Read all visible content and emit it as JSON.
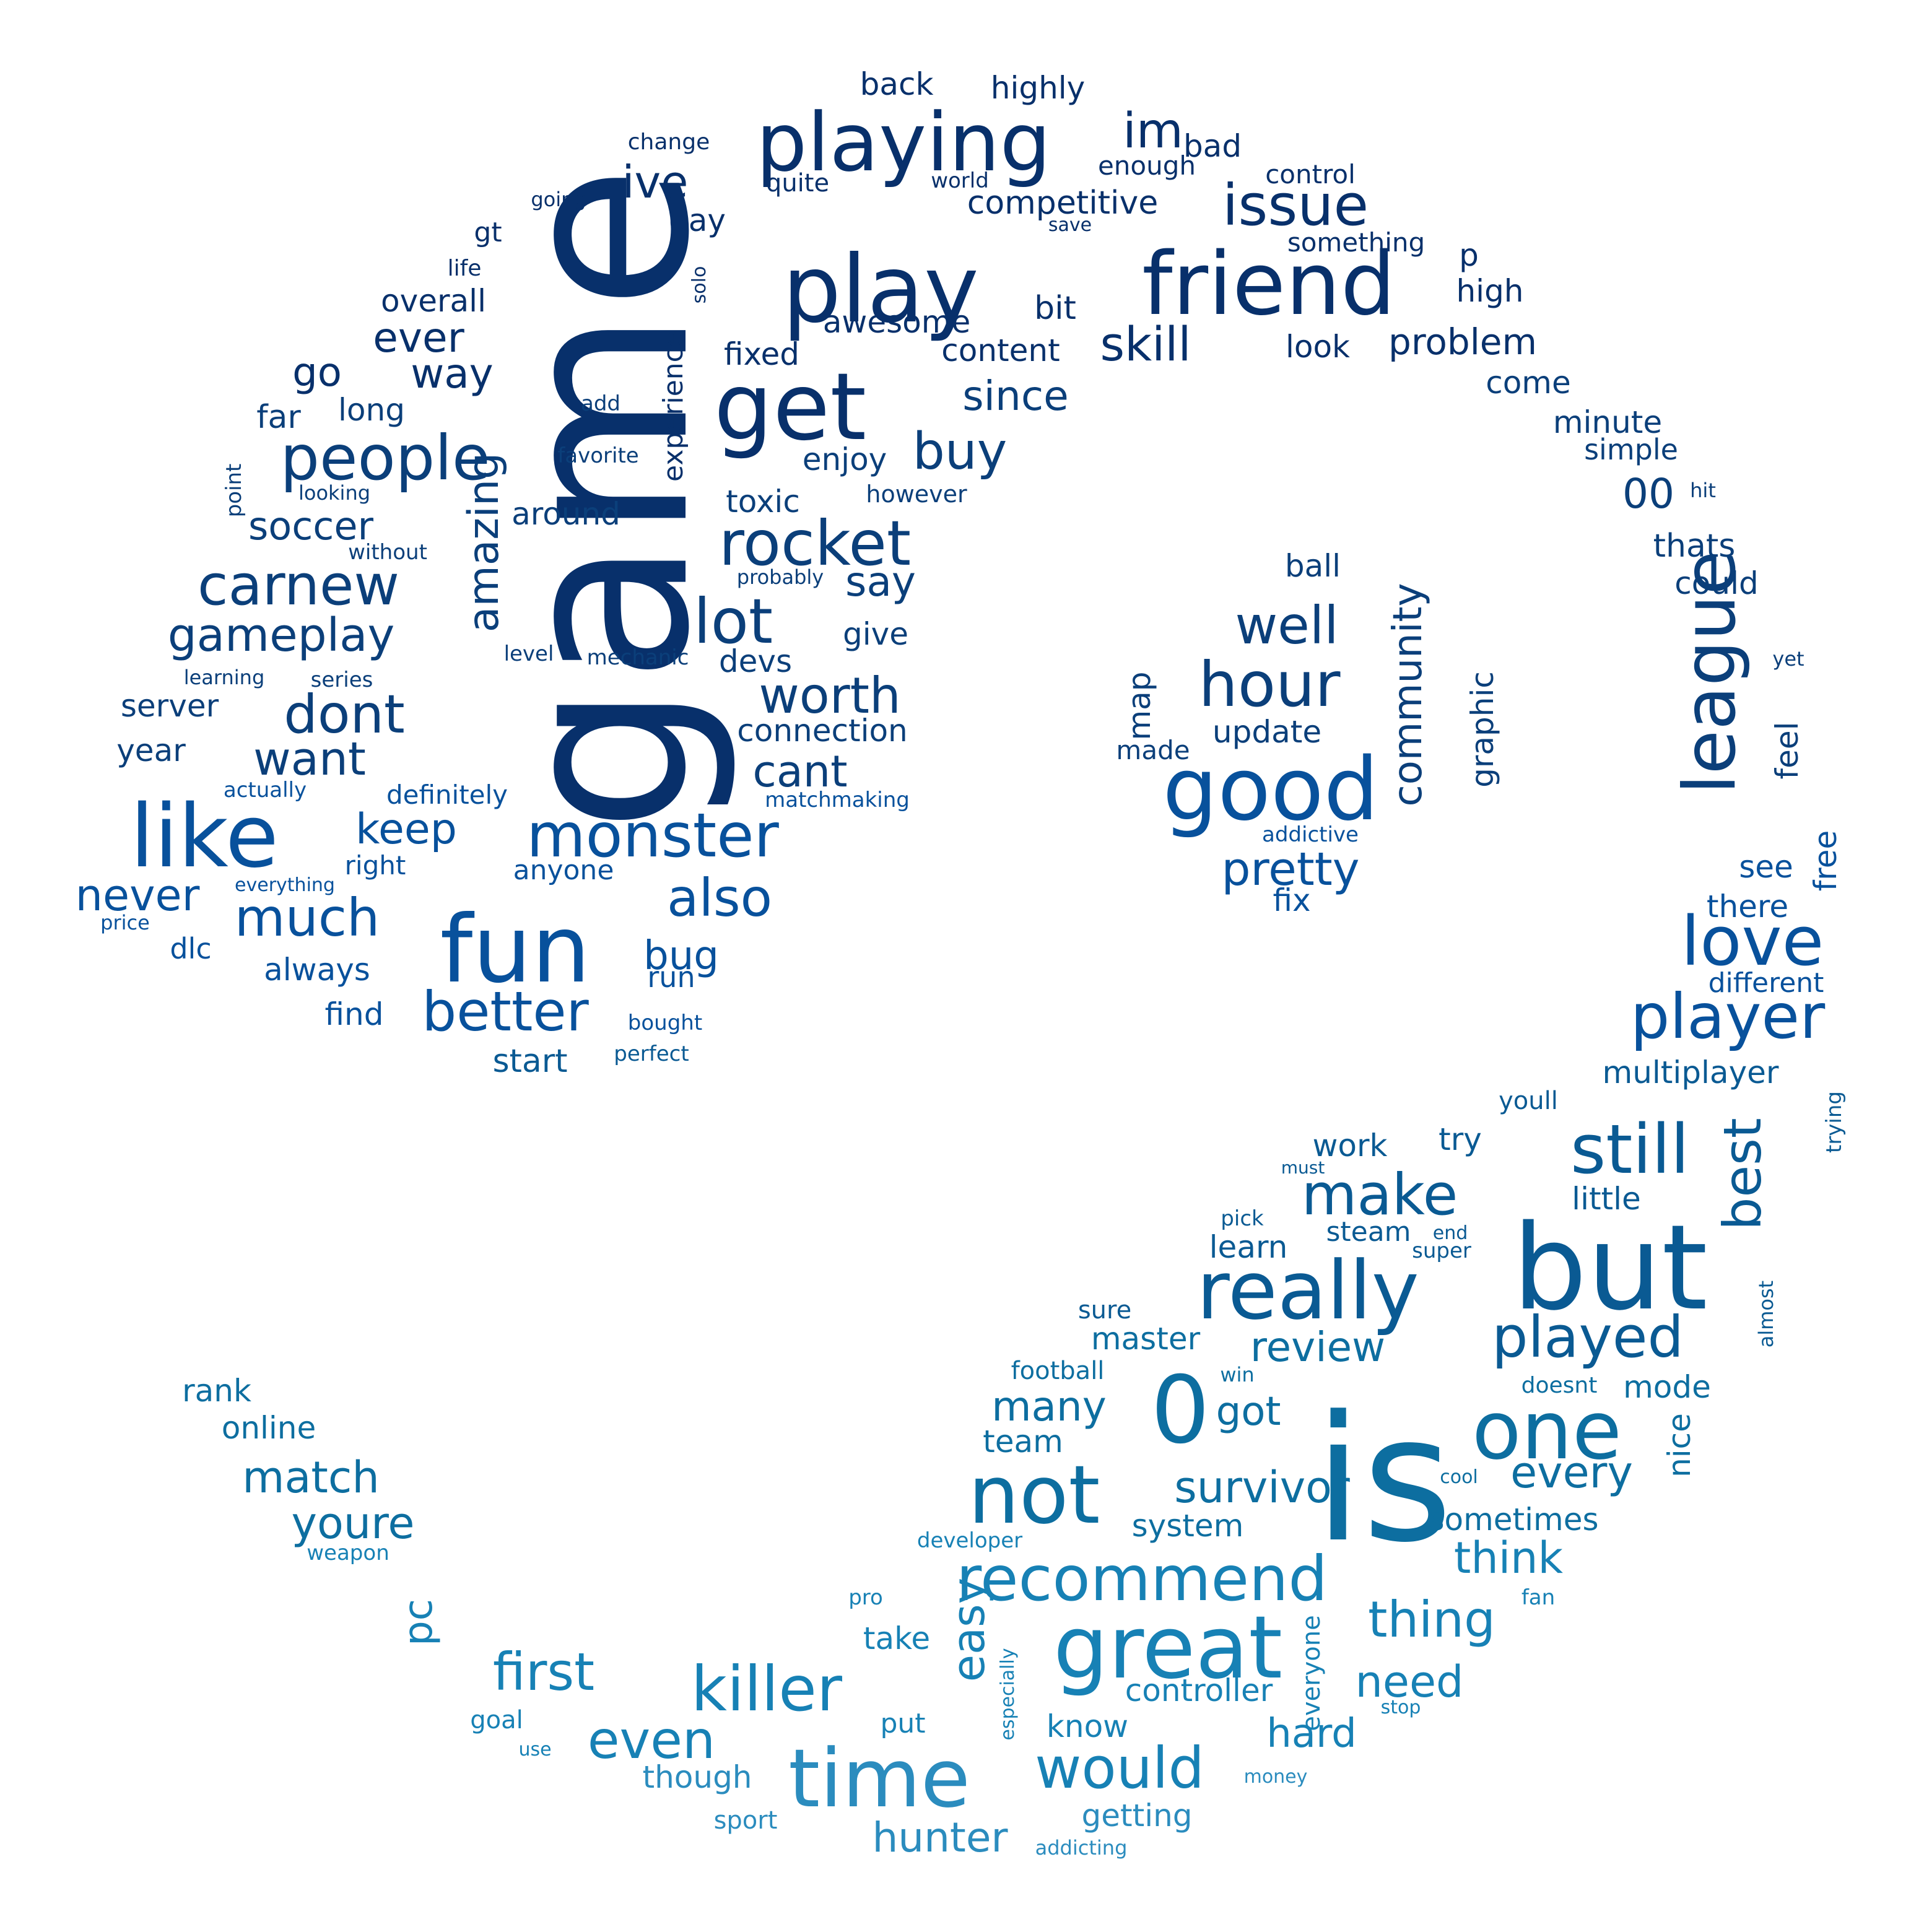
{
  "palette": [
    "#08306b",
    "#0b3f7a",
    "#08519c",
    "#0a5a93",
    "#0d6ea0",
    "#1781b5",
    "#2b8cbe"
  ],
  "words": [
    {
      "text": "game",
      "c": 0
    },
    {
      "text": "play",
      "c": 0
    },
    {
      "text": "playing",
      "c": 0
    },
    {
      "text": "friend",
      "c": 0
    },
    {
      "text": "get",
      "c": 0
    },
    {
      "text": "im",
      "c": 0
    },
    {
      "text": "ive",
      "c": 0
    },
    {
      "text": "issue",
      "c": 0
    },
    {
      "text": "back",
      "c": 0
    },
    {
      "text": "highly",
      "c": 0
    },
    {
      "text": "bad",
      "c": 0
    },
    {
      "text": "change",
      "c": 0
    },
    {
      "text": "enough",
      "c": 0
    },
    {
      "text": "control",
      "c": 0
    },
    {
      "text": "quite",
      "c": 0
    },
    {
      "text": "world",
      "c": 0
    },
    {
      "text": "going",
      "c": 0
    },
    {
      "text": "competitive",
      "c": 0
    },
    {
      "text": "day",
      "c": 0
    },
    {
      "text": "save",
      "c": 0
    },
    {
      "text": "something",
      "c": 0
    },
    {
      "text": "gt",
      "c": 0
    },
    {
      "text": "life",
      "c": 0
    },
    {
      "text": "solo",
      "c": 0
    },
    {
      "text": "p",
      "c": 0
    },
    {
      "text": "high",
      "c": 0
    },
    {
      "text": "overall",
      "c": 0
    },
    {
      "text": "bit",
      "c": 0
    },
    {
      "text": "ever",
      "c": 0
    },
    {
      "text": "awesome",
      "c": 0
    },
    {
      "text": "skill",
      "c": 0
    },
    {
      "text": "look",
      "c": 0
    },
    {
      "text": "problem",
      "c": 0
    },
    {
      "text": "way",
      "c": 0
    },
    {
      "text": "go",
      "c": 0
    },
    {
      "text": "fixed",
      "c": 0
    },
    {
      "text": "content",
      "c": 0
    },
    {
      "text": "experience",
      "c": 0
    },
    {
      "text": "come",
      "c": 1
    },
    {
      "text": "since",
      "c": 1
    },
    {
      "text": "far",
      "c": 1
    },
    {
      "text": "long",
      "c": 1
    },
    {
      "text": "add",
      "c": 1
    },
    {
      "text": "minute",
      "c": 1
    },
    {
      "text": "people",
      "c": 1
    },
    {
      "text": "simple",
      "c": 1
    },
    {
      "text": "favorite",
      "c": 1
    },
    {
      "text": "buy",
      "c": 1
    },
    {
      "text": "enjoy",
      "c": 1
    },
    {
      "text": "point",
      "c": 1
    },
    {
      "text": "looking",
      "c": 1
    },
    {
      "text": "around",
      "c": 1
    },
    {
      "text": "however",
      "c": 1
    },
    {
      "text": "00",
      "c": 1
    },
    {
      "text": "hit",
      "c": 1
    },
    {
      "text": "toxic",
      "c": 1
    },
    {
      "text": "soccer",
      "c": 1
    },
    {
      "text": "rocket",
      "c": 1
    },
    {
      "text": "thats",
      "c": 1
    },
    {
      "text": "without",
      "c": 1
    },
    {
      "text": "amazing",
      "c": 1
    },
    {
      "text": "ball",
      "c": 1
    },
    {
      "text": "carnew",
      "c": 1
    },
    {
      "text": "probably",
      "c": 1
    },
    {
      "text": "say",
      "c": 1
    },
    {
      "text": "could",
      "c": 1
    },
    {
      "text": "lot",
      "c": 1
    },
    {
      "text": "gameplay",
      "c": 1
    },
    {
      "text": "give",
      "c": 1
    },
    {
      "text": "well",
      "c": 1
    },
    {
      "text": "league",
      "c": 1
    },
    {
      "text": "level",
      "c": 1
    },
    {
      "text": "mechanic",
      "c": 1
    },
    {
      "text": "devs",
      "c": 1
    },
    {
      "text": "community",
      "c": 1
    },
    {
      "text": "yet",
      "c": 1
    },
    {
      "text": "learning",
      "c": 1
    },
    {
      "text": "series",
      "c": 1
    },
    {
      "text": "hour",
      "c": 1
    },
    {
      "text": "graphic",
      "c": 1
    },
    {
      "text": "server",
      "c": 1
    },
    {
      "text": "dont",
      "c": 1
    },
    {
      "text": "worth",
      "c": 1
    },
    {
      "text": "map",
      "c": 1
    },
    {
      "text": "connection",
      "c": 1
    },
    {
      "text": "update",
      "c": 1
    },
    {
      "text": "year",
      "c": 1
    },
    {
      "text": "want",
      "c": 1
    },
    {
      "text": "made",
      "c": 1
    },
    {
      "text": "feel",
      "c": 1
    },
    {
      "text": "cant",
      "c": 1
    },
    {
      "text": "actually",
      "c": 2
    },
    {
      "text": "definitely",
      "c": 2
    },
    {
      "text": "good",
      "c": 2
    },
    {
      "text": "matchmaking",
      "c": 2
    },
    {
      "text": "like",
      "c": 2
    },
    {
      "text": "keep",
      "c": 2
    },
    {
      "text": "monster",
      "c": 2
    },
    {
      "text": "addictive",
      "c": 2
    },
    {
      "text": "right",
      "c": 2
    },
    {
      "text": "free",
      "c": 2
    },
    {
      "text": "pretty",
      "c": 2
    },
    {
      "text": "see",
      "c": 2
    },
    {
      "text": "anyone",
      "c": 2
    },
    {
      "text": "never",
      "c": 2
    },
    {
      "text": "everything",
      "c": 2
    },
    {
      "text": "also",
      "c": 2
    },
    {
      "text": "fix",
      "c": 2
    },
    {
      "text": "there",
      "c": 2
    },
    {
      "text": "much",
      "c": 2
    },
    {
      "text": "price",
      "c": 2
    },
    {
      "text": "fun",
      "c": 2
    },
    {
      "text": "love",
      "c": 2
    },
    {
      "text": "bug",
      "c": 2
    },
    {
      "text": "dlc",
      "c": 2
    },
    {
      "text": "always",
      "c": 2
    },
    {
      "text": "run",
      "c": 2
    },
    {
      "text": "different",
      "c": 2
    },
    {
      "text": "find",
      "c": 2
    },
    {
      "text": "better",
      "c": 2
    },
    {
      "text": "player",
      "c": 2
    },
    {
      "text": "bought",
      "c": 2
    },
    {
      "text": "perfect",
      "c": 3
    },
    {
      "text": "start",
      "c": 3
    },
    {
      "text": "multiplayer",
      "c": 3
    },
    {
      "text": "youll",
      "c": 3
    },
    {
      "text": "trying",
      "c": 3
    },
    {
      "text": "best",
      "c": 3
    },
    {
      "text": "work",
      "c": 3
    },
    {
      "text": "try",
      "c": 3
    },
    {
      "text": "still",
      "c": 3
    },
    {
      "text": "must",
      "c": 3
    },
    {
      "text": "make",
      "c": 3
    },
    {
      "text": "little",
      "c": 3
    },
    {
      "text": "but",
      "c": 3
    },
    {
      "text": "pick",
      "c": 3
    },
    {
      "text": "learn",
      "c": 3
    },
    {
      "text": "steam",
      "c": 3
    },
    {
      "text": "end",
      "c": 3
    },
    {
      "text": "super",
      "c": 3
    },
    {
      "text": "really",
      "c": 3
    },
    {
      "text": "almost",
      "c": 3
    },
    {
      "text": "sure",
      "c": 3
    },
    {
      "text": "played",
      "c": 3
    },
    {
      "text": "master",
      "c": 4
    },
    {
      "text": "review",
      "c": 4
    },
    {
      "text": "football",
      "c": 4
    },
    {
      "text": "win",
      "c": 4
    },
    {
      "text": "doesnt",
      "c": 4
    },
    {
      "text": "mode",
      "c": 4
    },
    {
      "text": "rank",
      "c": 4
    },
    {
      "text": "0",
      "c": 4
    },
    {
      "text": "many",
      "c": 4
    },
    {
      "text": "got",
      "c": 4
    },
    {
      "text": "is",
      "c": 4
    },
    {
      "text": "one",
      "c": 4
    },
    {
      "text": "online",
      "c": 4
    },
    {
      "text": "team",
      "c": 4
    },
    {
      "text": "nice",
      "c": 4
    },
    {
      "text": "match",
      "c": 4
    },
    {
      "text": "not",
      "c": 4
    },
    {
      "text": "survivor",
      "c": 4
    },
    {
      "text": "every",
      "c": 4
    },
    {
      "text": "cool",
      "c": 4
    },
    {
      "text": "youre",
      "c": 4
    },
    {
      "text": "system",
      "c": 4
    },
    {
      "text": "sometimes",
      "c": 4
    },
    {
      "text": "developer",
      "c": 5
    },
    {
      "text": "weapon",
      "c": 5
    },
    {
      "text": "think",
      "c": 5
    },
    {
      "text": "recommend",
      "c": 5
    },
    {
      "text": "pc",
      "c": 5
    },
    {
      "text": "pro",
      "c": 5
    },
    {
      "text": "fan",
      "c": 5
    },
    {
      "text": "thing",
      "c": 5
    },
    {
      "text": "easy",
      "c": 5
    },
    {
      "text": "take",
      "c": 5
    },
    {
      "text": "great",
      "c": 5
    },
    {
      "text": "especially",
      "c": 5
    },
    {
      "text": "everyone",
      "c": 5
    },
    {
      "text": "first",
      "c": 5
    },
    {
      "text": "killer",
      "c": 5
    },
    {
      "text": "need",
      "c": 5
    },
    {
      "text": "controller",
      "c": 5
    },
    {
      "text": "goal",
      "c": 5
    },
    {
      "text": "put",
      "c": 5
    },
    {
      "text": "know",
      "c": 5
    },
    {
      "text": "stop",
      "c": 5
    },
    {
      "text": "even",
      "c": 5
    },
    {
      "text": "hard",
      "c": 5
    },
    {
      "text": "use",
      "c": 5
    },
    {
      "text": "would",
      "c": 5
    },
    {
      "text": "time",
      "c": 6
    },
    {
      "text": "though",
      "c": 6
    },
    {
      "text": "money",
      "c": 6
    },
    {
      "text": "getting",
      "c": 6
    },
    {
      "text": "sport",
      "c": 6
    },
    {
      "text": "hunter",
      "c": 6
    },
    {
      "text": "addicting",
      "c": 6
    }
  ]
}
